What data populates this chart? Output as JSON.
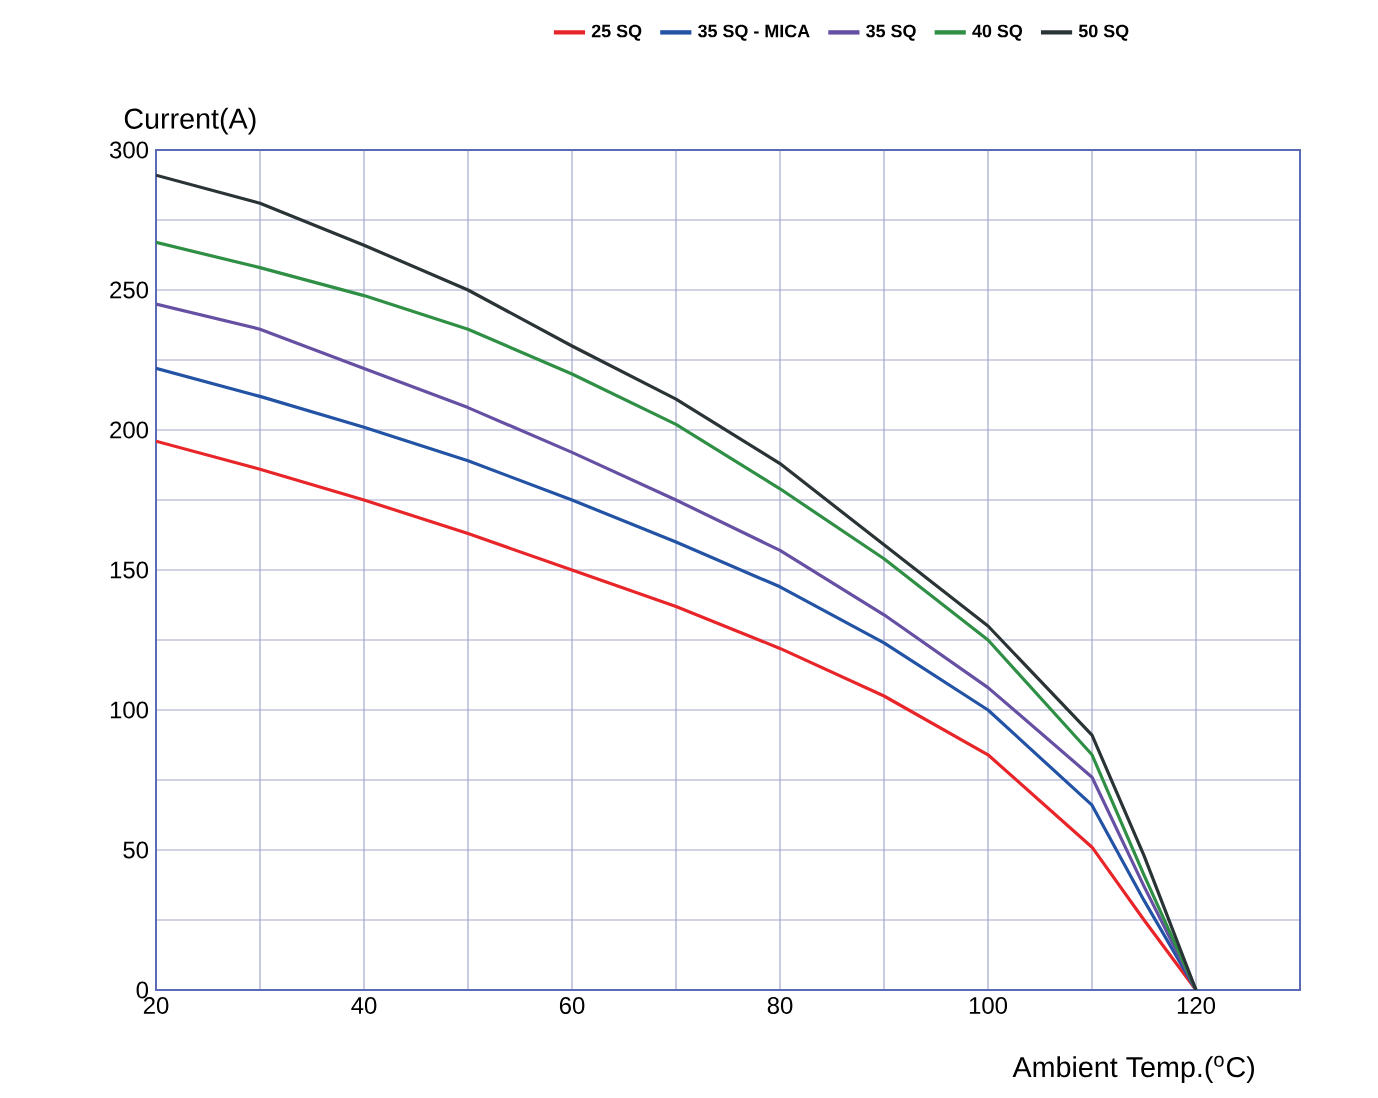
{
  "chart_data": {
    "type": "line",
    "xlabel": "Ambient Temp.($^{o}$C)",
    "ylabel": "Current(A)",
    "x": [
      20,
      30,
      40,
      50,
      60,
      70,
      80,
      90,
      100,
      110,
      115,
      120
    ],
    "series": [
      {
        "name": "25 SQ",
        "color": "#e8262a",
        "values": [
          196,
          186,
          175,
          163,
          150,
          137,
          122,
          105,
          84,
          51,
          25,
          0
        ]
      },
      {
        "name": "35 SQ - MICA",
        "color": "#2353a5",
        "values": [
          222,
          212,
          201,
          189,
          175,
          160,
          144,
          124,
          100,
          66,
          32,
          0
        ]
      },
      {
        "name": "35 SQ",
        "color": "#6650a3",
        "values": [
          245,
          236,
          222,
          208,
          192,
          175,
          157,
          134,
          108,
          76,
          37,
          0
        ]
      },
      {
        "name": "40 SQ",
        "color": "#2f8f45",
        "values": [
          267,
          258,
          248,
          236,
          220,
          202,
          179,
          154,
          125,
          84,
          41,
          0
        ]
      },
      {
        "name": "50 SQ",
        "color": "#2a3335",
        "values": [
          291,
          281,
          266,
          250,
          230,
          211,
          188,
          159,
          130,
          91,
          48,
          0
        ]
      }
    ],
    "xlim": [
      20,
      130
    ],
    "xticks": [
      20,
      {
        "value": 30,
        "label": null
      },
      40,
      {
        "value": 50,
        "label": null
      },
      60,
      {
        "value": 70,
        "label": null
      },
      80,
      {
        "value": 90,
        "label": null
      },
      100,
      {
        "value": 110,
        "label": null
      },
      120,
      {
        "value": 130,
        "label": null
      }
    ],
    "ylim": [
      0,
      300
    ],
    "yticks": [
      0,
      {
        "value": 25,
        "label": null
      },
      50,
      {
        "value": 75,
        "label": null
      },
      100,
      {
        "value": 125,
        "label": null
      },
      150,
      {
        "value": 175,
        "label": null
      },
      200,
      {
        "value": 225,
        "label": null
      },
      250,
      {
        "value": 275,
        "label": null
      },
      300
    ],
    "grid": true,
    "legend": "top",
    "marker": "none",
    "line_style": "solid"
  }
}
